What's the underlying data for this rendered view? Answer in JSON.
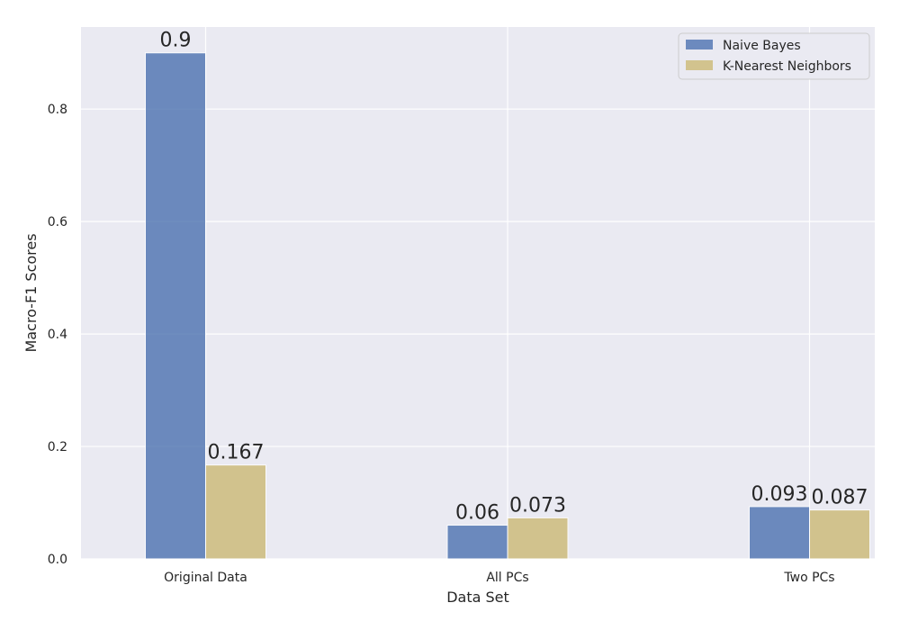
{
  "chart_data": {
    "type": "bar",
    "title": "",
    "xlabel": "Data Set",
    "ylabel": "Macro-F1 Scores",
    "categories": [
      "Original Data",
      "All PCs",
      "Two PCs"
    ],
    "series": [
      {
        "name": "Naive Bayes",
        "values": [
          0.9,
          0.06,
          0.093
        ],
        "labels": [
          "0.9",
          "0.06",
          "0.093"
        ],
        "color": "#4c72b0"
      },
      {
        "name": "K-Nearest Neighbors",
        "values": [
          0.167,
          0.073,
          0.087
        ],
        "labels": [
          "0.167",
          "0.073",
          "0.087"
        ],
        "color": "#ccb974"
      }
    ],
    "ylim": [
      0,
      0.946
    ],
    "yticks": [
      0.0,
      0.2,
      0.4,
      0.6,
      0.8
    ],
    "ytick_labels": [
      "0.0",
      "0.2",
      "0.4",
      "0.6",
      "0.8"
    ],
    "grid": true,
    "legend_position": "top-right",
    "background_color": "#eaeaf2",
    "grid_color": "#ffffff"
  }
}
